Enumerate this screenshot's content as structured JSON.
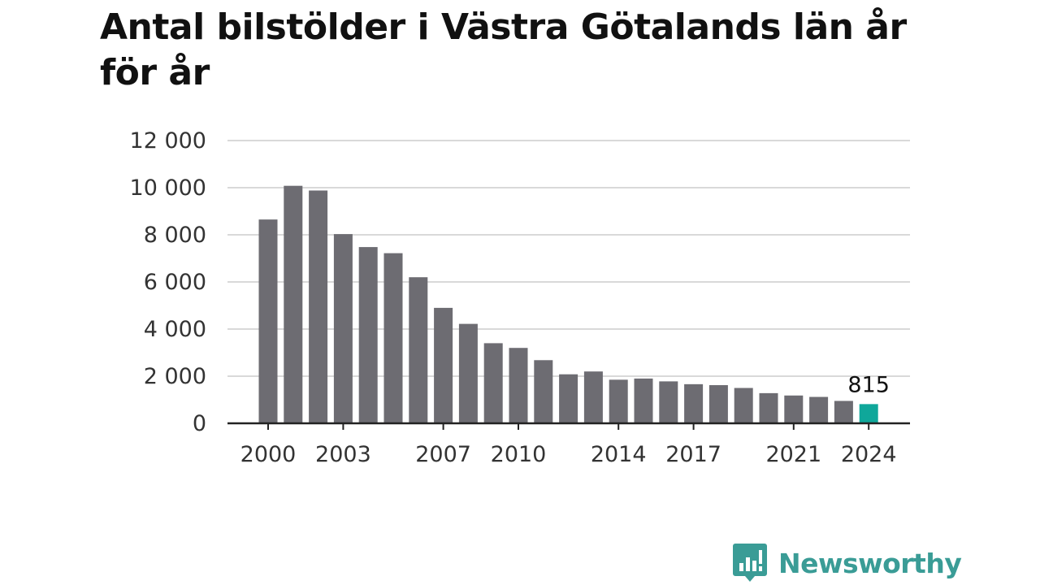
{
  "title": "Antal bilstölder i Västra Götalands län år för år",
  "brand": {
    "name": "Newsworthy",
    "color": "#3a9c96"
  },
  "colors": {
    "bar": "#6d6c72",
    "highlight": "#0fa79a",
    "grid": "#d9d9d9",
    "axis": "#222222",
    "text": "#333333"
  },
  "chart_data": {
    "type": "bar",
    "title": "Antal bilstölder i Västra Götalands län år för år",
    "xlabel": "",
    "ylabel": "",
    "ylim": [
      0,
      12000
    ],
    "grid": true,
    "categories": [
      "2000",
      "2001",
      "2002",
      "2003",
      "2004",
      "2005",
      "2006",
      "2007",
      "2008",
      "2009",
      "2010",
      "2011",
      "2012",
      "2013",
      "2014",
      "2015",
      "2016",
      "2017",
      "2018",
      "2019",
      "2020",
      "2021",
      "2022",
      "2023",
      "2024"
    ],
    "values": [
      8650,
      10080,
      9880,
      8030,
      7480,
      7220,
      6200,
      4900,
      4220,
      3400,
      3200,
      2680,
      2080,
      2200,
      1850,
      1900,
      1780,
      1660,
      1620,
      1500,
      1280,
      1180,
      1120,
      950,
      815
    ],
    "y_ticks": [
      0,
      2000,
      4000,
      6000,
      8000,
      10000,
      12000
    ],
    "y_tick_labels": [
      "0",
      "2 000",
      "4 000",
      "6 000",
      "8 000",
      "10 000",
      "12 000"
    ],
    "x_tick_labels": [
      "2000",
      "2003",
      "2007",
      "2010",
      "2014",
      "2017",
      "2021",
      "2024"
    ],
    "highlight_category": "2024",
    "data_labels": [
      {
        "category": "2024",
        "text": "815"
      }
    ]
  }
}
